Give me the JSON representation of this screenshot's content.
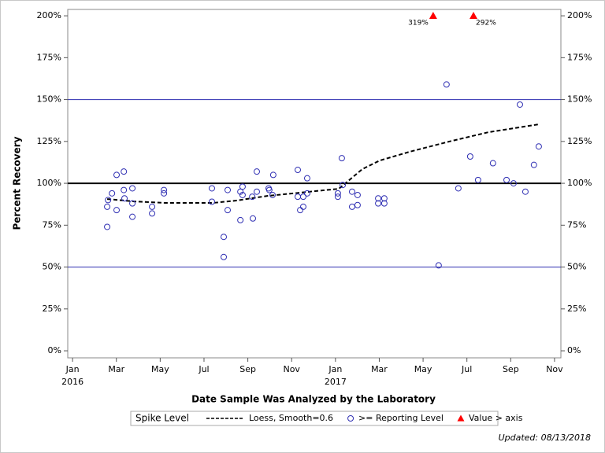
{
  "chart_data": {
    "type": "scatter",
    "x_label": "Date Sample Was Analyzed by the Laboratory",
    "y_label": "Percent Recovery",
    "xlim": [
      -0.22,
      22.29
    ],
    "xticks": [
      {
        "value": 0,
        "label": "Jan"
      },
      {
        "value": 2,
        "label": "Mar"
      },
      {
        "value": 4,
        "label": "May"
      },
      {
        "value": 6,
        "label": "Jul"
      },
      {
        "value": 8,
        "label": "Sep"
      },
      {
        "value": 10,
        "label": "Nov"
      },
      {
        "value": 12,
        "label": "Jan"
      },
      {
        "value": 14,
        "label": "Mar"
      },
      {
        "value": 16,
        "label": "May"
      },
      {
        "value": 18,
        "label": "Jul"
      },
      {
        "value": 20,
        "label": "Sep"
      },
      {
        "value": 22,
        "label": "Nov"
      }
    ],
    "xtick_years": [
      {
        "value": 0,
        "label": "2016"
      },
      {
        "value": 12,
        "label": "2017"
      }
    ],
    "ylim": [
      -4.2,
      203.8
    ],
    "yticks": [
      {
        "value": 0,
        "label": "0%"
      },
      {
        "value": 25,
        "label": "25%"
      },
      {
        "value": 50,
        "label": "50%"
      },
      {
        "value": 75,
        "label": "75%"
      },
      {
        "value": 100,
        "label": "100%"
      },
      {
        "value": 125,
        "label": "125%"
      },
      {
        "value": 150,
        "label": "150%"
      },
      {
        "value": 175,
        "label": "175%"
      },
      {
        "value": 200,
        "label": "200%"
      }
    ],
    "reference_lines": [
      {
        "value": 150,
        "color": "#2b2bb0",
        "width": 1
      },
      {
        "value": 100,
        "color": "#000000",
        "width": 2
      },
      {
        "value": 50,
        "color": "#2b2bb0",
        "width": 1
      }
    ],
    "legend_title": "Spike Level",
    "series": [
      {
        "name": "Loess, Smooth=0.6",
        "type": "line",
        "color": "#000000",
        "x": [
          1.58,
          2.8,
          4.24,
          6.4,
          7.48,
          8.91,
          10.0,
          11.43,
          12.15,
          13.23,
          14.02,
          15.38,
          17.18,
          18.98,
          21.28
        ],
        "values": [
          90.6,
          89.2,
          88.3,
          88.3,
          89.7,
          92.5,
          93.9,
          95.8,
          96.7,
          108.5,
          113.6,
          118.8,
          124.9,
          130.5,
          135.2
        ]
      },
      {
        "name": ">= Reporting Level",
        "type": "scatter",
        "color": "#2f2fb3",
        "x": [
          1.58,
          1.58,
          1.62,
          1.8,
          2.01,
          2.01,
          2.34,
          2.34,
          2.37,
          2.73,
          2.73,
          2.73,
          3.63,
          3.63,
          4.17,
          4.17,
          6.36,
          6.36,
          6.9,
          6.9,
          7.08,
          7.08,
          7.66,
          7.66,
          7.76,
          7.76,
          8.2,
          8.23,
          8.41,
          8.41,
          8.95,
          8.98,
          9.13,
          9.16,
          10.28,
          10.28,
          10.39,
          10.53,
          10.53,
          10.71,
          10.71,
          12.11,
          12.11,
          12.29,
          12.33,
          12.76,
          12.76,
          13.01,
          13.01,
          13.95,
          13.95,
          14.23,
          14.23,
          16.71,
          17.07,
          17.61,
          18.15,
          18.51,
          19.19,
          19.81,
          20.13,
          20.42,
          20.67,
          21.06,
          21.28
        ],
        "values": [
          74,
          86,
          90,
          94,
          105,
          84,
          107,
          96,
          91,
          97,
          88,
          80,
          86,
          82,
          96,
          94,
          97,
          89,
          68,
          56,
          96,
          84,
          95,
          78,
          98,
          93,
          92,
          79,
          107,
          95,
          97,
          96,
          93,
          105,
          108,
          92,
          84,
          92,
          86,
          103,
          94,
          94,
          92,
          115,
          99,
          95,
          86,
          93,
          87,
          91,
          88,
          91,
          88,
          51,
          159,
          97,
          116,
          102,
          112,
          102,
          100,
          147,
          95,
          111,
          122
        ]
      },
      {
        "name": "Value > axis",
        "type": "above_axis",
        "color": "#ff0000",
        "x": [
          16.46,
          18.3
        ],
        "values": [
          319,
          292
        ],
        "value_labels": [
          "319%",
          "292%"
        ]
      }
    ],
    "footnote": "Updated: 08/13/2018"
  }
}
